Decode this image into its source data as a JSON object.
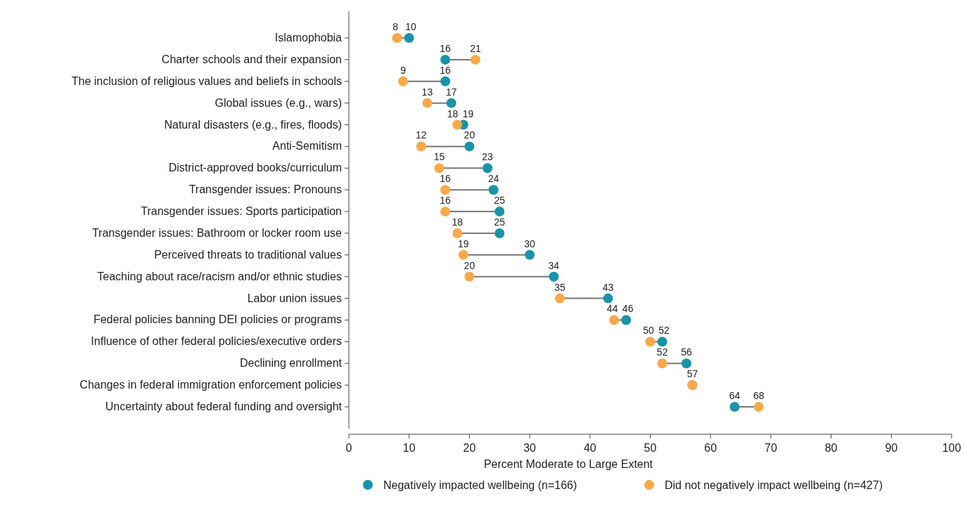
{
  "chart_data": {
    "type": "scatter",
    "orientation": "horizontal",
    "xlabel": "Percent Moderate to Large Extent",
    "categories": [
      "Islamophobia",
      "Charter schools and their expansion",
      "The inclusion of religious values and beliefs in schools",
      "Global issues (e.g., wars)",
      "Natural disasters (e.g., fires, floods)",
      "Anti-Semitism",
      "District-approved books/curriculum",
      "Transgender issues: Pronouns",
      "Transgender issues: Sports participation",
      "Transgender issues: Bathroom or locker room use",
      "Perceived threats to traditional values",
      "Teaching about race/racism and/or ethnic studies",
      "Labor union issues",
      "Federal policies banning DEI policies or programs",
      "Influence of other federal policies/executive orders",
      "Declining enrollment",
      "Changes in federal immigration enforcement policies",
      "Uncertainty about federal funding and oversight"
    ],
    "series": [
      {
        "name": "Negatively impacted wellbeing (n=166)",
        "color": "#1a93a8",
        "values": [
          10,
          16,
          16,
          17,
          19,
          20,
          23,
          24,
          25,
          25,
          30,
          34,
          43,
          46,
          52,
          56,
          57,
          64
        ],
        "value_labels": [
          "10",
          "16",
          "16",
          "17",
          "19",
          "20",
          "23",
          "24",
          "25",
          "25",
          "30",
          "34",
          "43",
          "46",
          "52",
          "56",
          "57",
          "64"
        ]
      },
      {
        "name": "Did not negatively impact wellbeing (n=427)",
        "color": "#f9a94b",
        "values": [
          8,
          21,
          9,
          13,
          18,
          12,
          15,
          16,
          16,
          18,
          19,
          20,
          35,
          44,
          50,
          52,
          57,
          68
        ],
        "value_labels": [
          "8",
          "21",
          "9",
          "13",
          "18",
          "12",
          "15",
          "16",
          "16",
          "18",
          "19",
          "20",
          "35",
          "44",
          "50",
          "52",
          null,
          "68"
        ]
      }
    ],
    "xlim": [
      0,
      100
    ],
    "xticks": [
      0,
      10,
      20,
      30,
      40,
      50,
      60,
      70,
      80,
      90,
      100
    ],
    "marker": "circle",
    "legend": "bottom"
  }
}
